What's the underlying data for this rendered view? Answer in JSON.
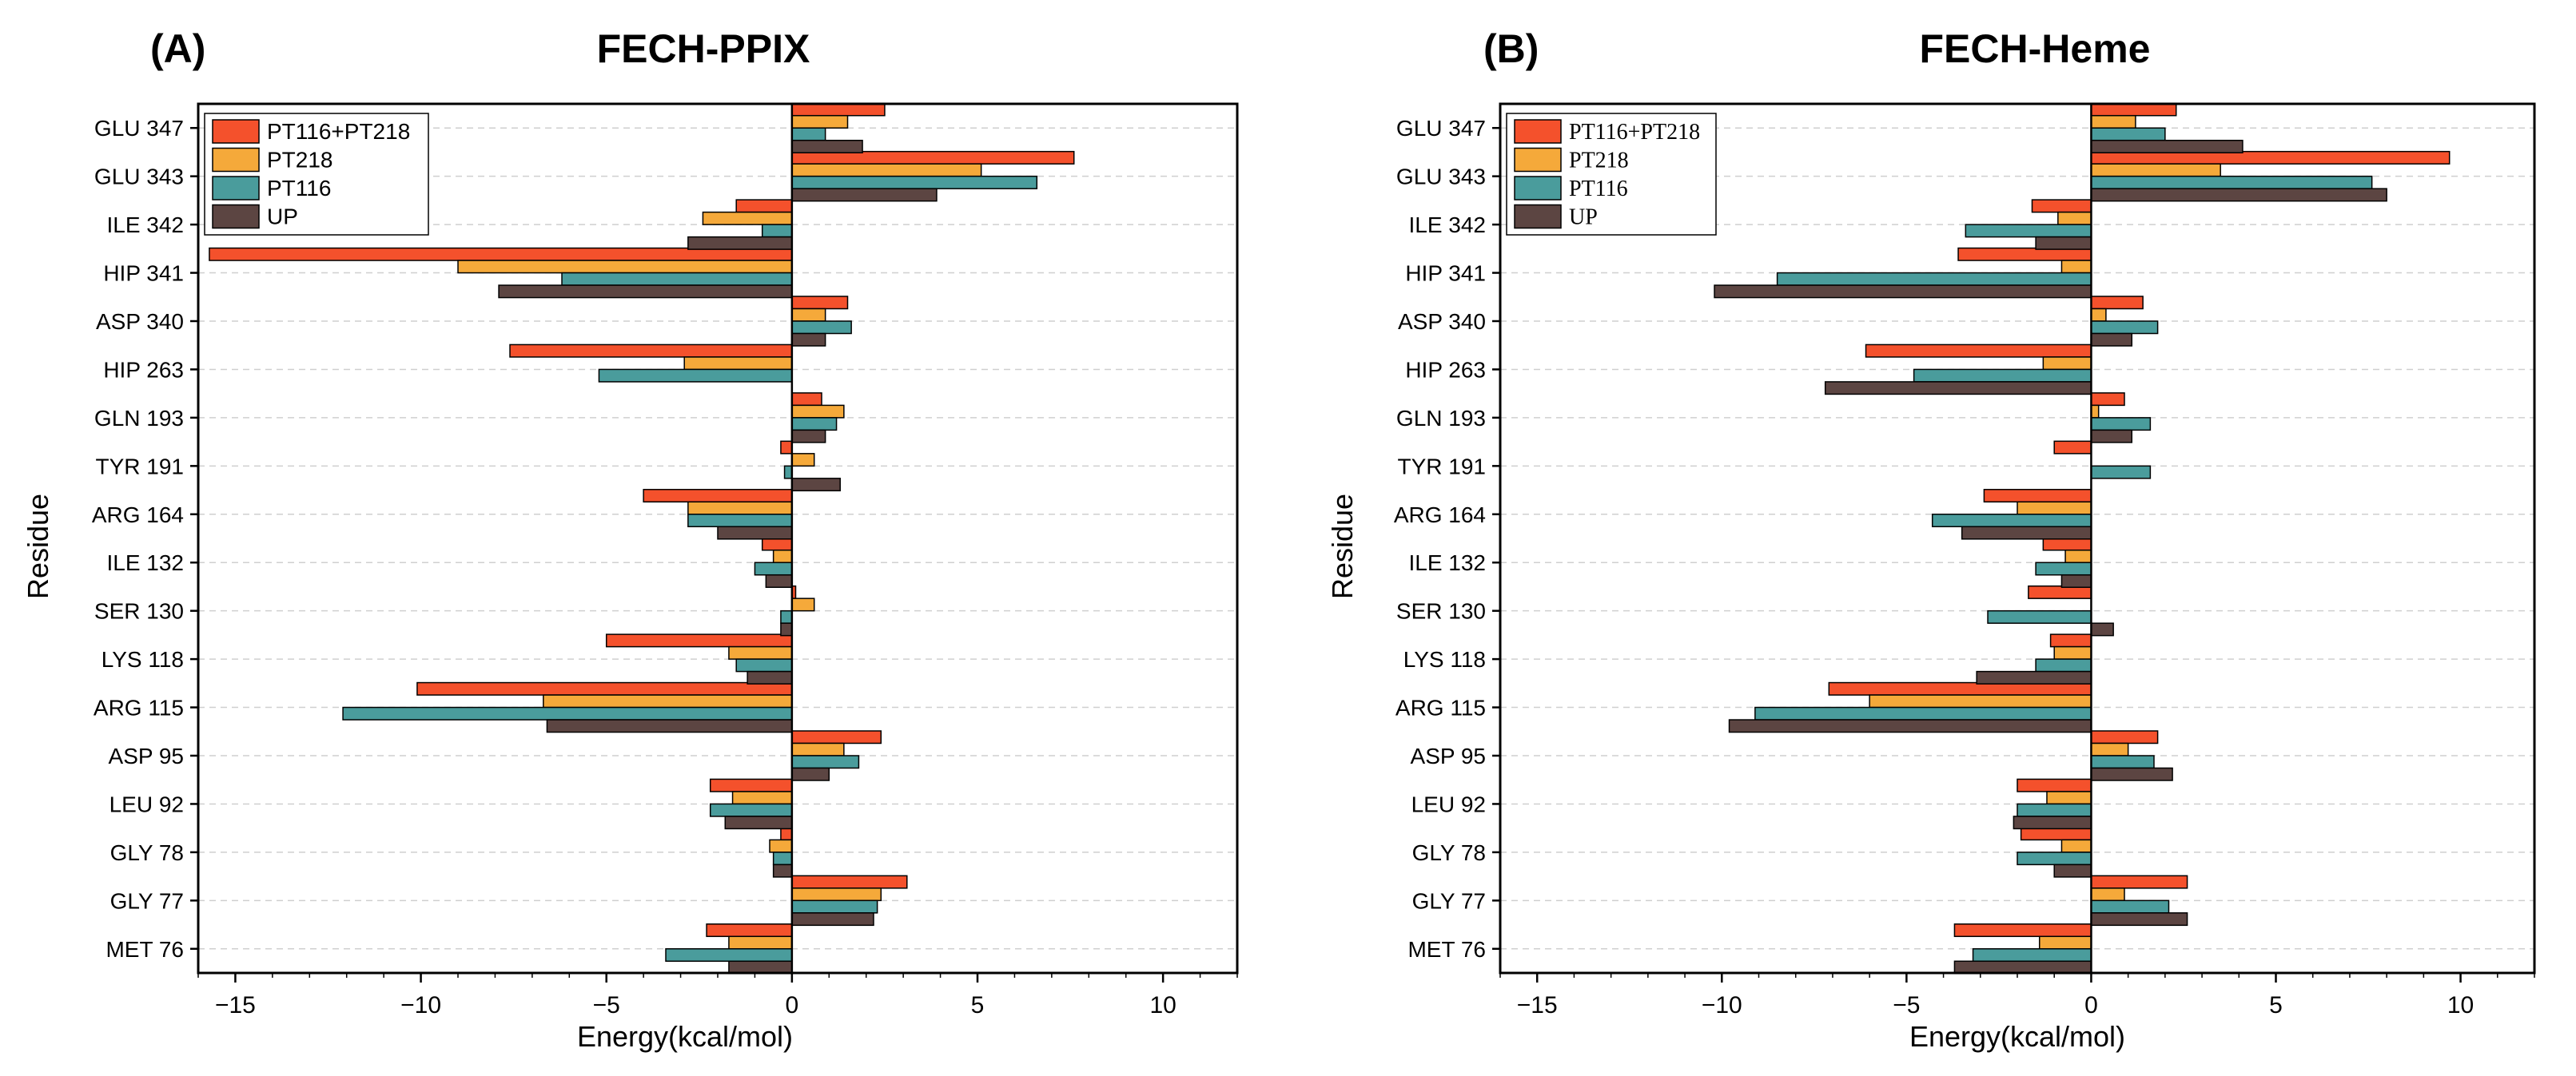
{
  "chart_data": [
    {
      "type": "bar",
      "orientation": "horizontal",
      "panel_label": "(A)",
      "title": "FECH-PPIX",
      "xlabel": "Energy(kcal/mol)",
      "ylabel": "Residue",
      "xlim": [
        -16,
        12
      ],
      "xticks": [
        -15,
        -10,
        -5,
        0,
        5,
        10
      ],
      "xtick_labels": [
        "−15",
        "−10",
        "−5",
        "0",
        "5",
        "10"
      ],
      "grid": "horizontal dashed",
      "legend_position": "top-left",
      "categories": [
        "GLU 347",
        "GLU 343",
        "ILE 342",
        "HIP 341",
        "ASP 340",
        "HIP 263",
        "GLN 193",
        "TYR 191",
        "ARG 164",
        "ILE 132",
        "SER 130",
        "LYS 118",
        "ARG 115",
        "ASP 95",
        "LEU 92",
        "GLY 78",
        "GLY 77",
        "MET 76"
      ],
      "series": [
        {
          "name": "PT116+PT218",
          "color": "#F4512C",
          "values": [
            2.5,
            7.6,
            -1.5,
            -15.7,
            1.5,
            -7.6,
            0.8,
            -0.3,
            -4.0,
            -0.8,
            0.1,
            -5.0,
            -10.1,
            2.4,
            -2.2,
            -0.3,
            3.1,
            -2.3
          ]
        },
        {
          "name": "PT218",
          "color": "#F5A93A",
          "values": [
            1.5,
            5.1,
            -2.4,
            -9.0,
            0.9,
            -2.9,
            1.4,
            0.6,
            -2.8,
            -0.5,
            0.6,
            -1.7,
            -6.7,
            1.4,
            -1.6,
            -0.6,
            2.4,
            -1.7
          ]
        },
        {
          "name": "PT116",
          "color": "#4A9C9C",
          "values": [
            0.9,
            6.6,
            -0.8,
            -6.2,
            1.6,
            -5.2,
            1.2,
            -0.2,
            -2.8,
            -1.0,
            -0.3,
            -1.5,
            -12.1,
            1.8,
            -2.2,
            -0.5,
            2.3,
            -3.4
          ]
        },
        {
          "name": "UP",
          "color": "#5C4542",
          "values": [
            1.9,
            3.9,
            -2.8,
            -7.9,
            0.9,
            0.0,
            0.9,
            1.3,
            -2.0,
            -0.7,
            -0.3,
            -1.2,
            -6.6,
            1.0,
            -1.8,
            -0.5,
            2.2,
            -1.7
          ]
        }
      ]
    },
    {
      "type": "bar",
      "orientation": "horizontal",
      "panel_label": "(B)",
      "title": "FECH-Heme",
      "xlabel": "Energy(kcal/mol)",
      "ylabel": "Residue",
      "xlim": [
        -16,
        12
      ],
      "xticks": [
        -15,
        -10,
        -5,
        0,
        5,
        10
      ],
      "xtick_labels": [
        "−15",
        "−10",
        "−5",
        "0",
        "5",
        "10"
      ],
      "grid": "horizontal dashed",
      "legend_position": "top-left",
      "categories": [
        "GLU 347",
        "GLU 343",
        "ILE 342",
        "HIP 341",
        "ASP 340",
        "HIP 263",
        "GLN 193",
        "TYR 191",
        "ARG 164",
        "ILE 132",
        "SER 130",
        "LYS 118",
        "ARG 115",
        "ASP 95",
        "LEU 92",
        "GLY 78",
        "GLY 77",
        "MET 76"
      ],
      "series": [
        {
          "name": "PT116+PT218",
          "color": "#F4512C",
          "values": [
            2.3,
            9.7,
            -1.6,
            -3.6,
            1.4,
            -6.1,
            0.9,
            -1.0,
            -2.9,
            -1.3,
            -1.7,
            -1.1,
            -7.1,
            1.8,
            -2.0,
            -1.9,
            2.6,
            -3.7
          ]
        },
        {
          "name": "PT218",
          "color": "#F5A93A",
          "values": [
            1.2,
            3.5,
            -0.9,
            -0.8,
            0.4,
            -1.3,
            0.2,
            0.0,
            -2.0,
            -0.7,
            0.0,
            -1.0,
            -6.0,
            1.0,
            -1.2,
            -0.8,
            0.9,
            -1.4
          ]
        },
        {
          "name": "PT116",
          "color": "#4A9C9C",
          "values": [
            2.0,
            7.6,
            -3.4,
            -8.5,
            1.8,
            -4.8,
            1.6,
            1.6,
            -4.3,
            -1.5,
            -2.8,
            -1.5,
            -9.1,
            1.7,
            -2.0,
            -2.0,
            2.1,
            -3.2
          ]
        },
        {
          "name": "UP",
          "color": "#5C4542",
          "values": [
            4.1,
            8.0,
            -1.5,
            -10.2,
            1.1,
            -7.2,
            1.1,
            0.0,
            -3.5,
            -0.8,
            0.6,
            -3.1,
            -9.8,
            2.2,
            -2.1,
            -1.0,
            2.6,
            -3.7
          ]
        }
      ]
    }
  ]
}
